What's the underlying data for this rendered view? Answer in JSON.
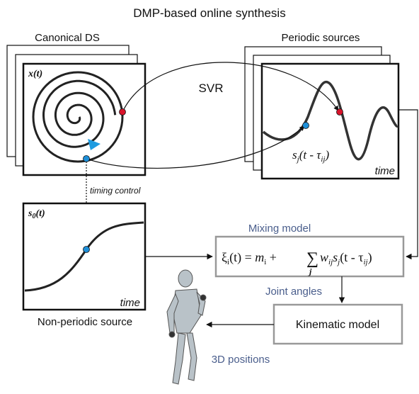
{
  "title": "DMP-based online synthesis",
  "canonical": {
    "label": "Canonical DS",
    "plot_label": "x(t)"
  },
  "periodic": {
    "label": "Periodic sources",
    "source": [
      "s",
      "j",
      "(t - τ",
      "ij",
      ")"
    ],
    "time": "time"
  },
  "svr": "SVR",
  "timing_control": "timing control",
  "nonperiodic": {
    "plot_label": [
      "s",
      "0",
      "(t)"
    ],
    "time": "time",
    "label": "Non-periodic source"
  },
  "mixing": {
    "label": "Mixing model",
    "formula": [
      "ξ",
      "i",
      "(t) = ",
      "m",
      "i",
      " + ",
      "∑",
      "j",
      "w",
      "ij",
      "s",
      "j",
      "(t - τ",
      "ij",
      ")"
    ]
  },
  "joint_angles": "Joint angles",
  "kinematic": "Kinematic model",
  "positions": "3D positions"
}
